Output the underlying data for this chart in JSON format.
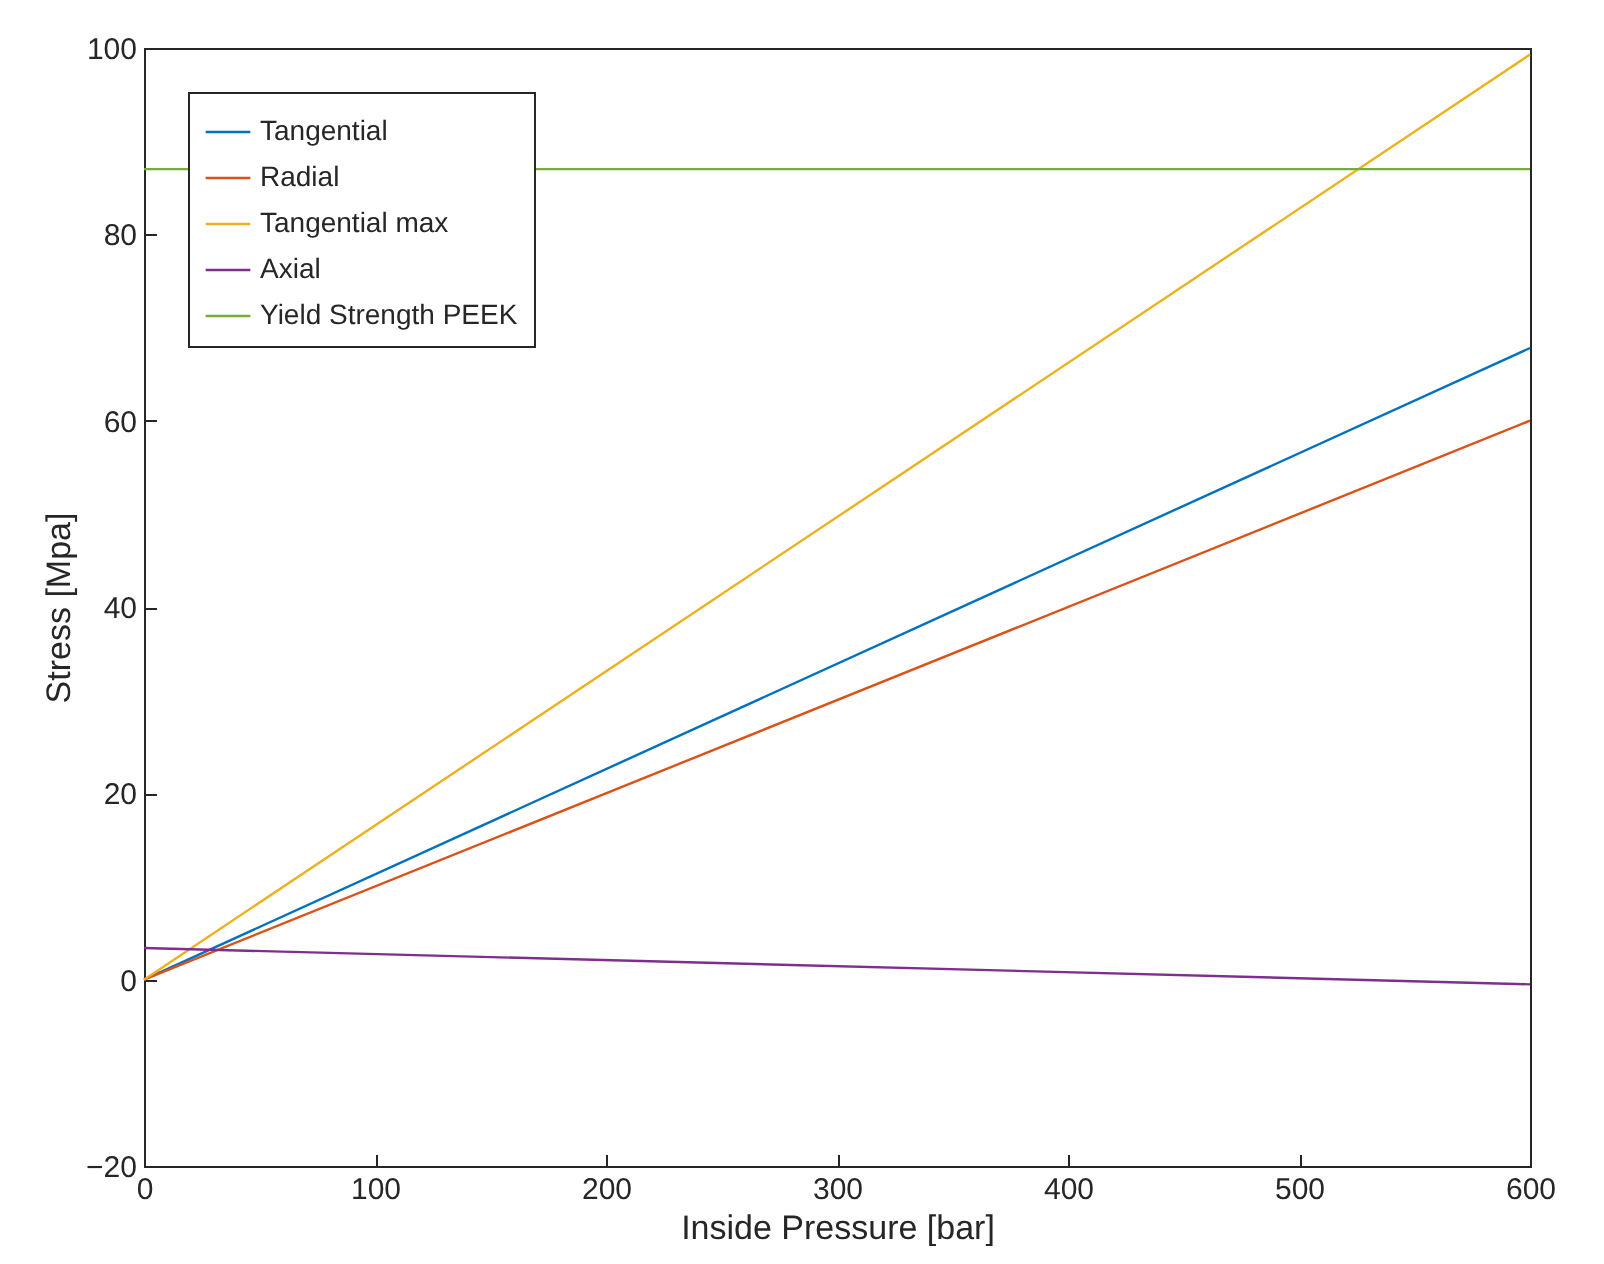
{
  "chart_data": {
    "type": "line",
    "xlabel": "Inside Pressure [bar]",
    "ylabel": "Stress [Mpa]",
    "x": [
      0,
      600
    ],
    "xlim": [
      0,
      600
    ],
    "xticks": [
      0,
      100,
      200,
      300,
      400,
      500,
      600
    ],
    "ylim": [
      -20,
      100
    ],
    "yticks": [
      -20,
      0,
      20,
      40,
      60,
      80,
      100
    ],
    "legend": "top left",
    "marker": "none",
    "line_style": "solid",
    "series": [
      {
        "name": "Tangential",
        "color": "#0072bd",
        "values": [
          0,
          67.8
        ]
      },
      {
        "name": "Radial",
        "color": "#d95319",
        "values": [
          0,
          60
        ]
      },
      {
        "name": "Tangential max",
        "color": "#edb120",
        "values": [
          0,
          99.3
        ]
      },
      {
        "name": "Axial",
        "color": "#7e2f8e",
        "values": [
          3.4,
          -0.5
        ]
      },
      {
        "name": "Yield Strength PEEK",
        "color": "#77ac30",
        "values": [
          87,
          87
        ]
      }
    ]
  }
}
